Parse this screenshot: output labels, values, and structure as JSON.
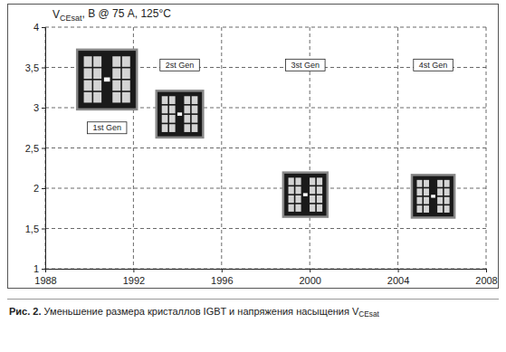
{
  "chart_data": {
    "type": "scatter",
    "title": "Рис. 2. Уменьшение размера кристаллов IGBT и напряжения насыщения VCEsat",
    "ylabel": "VCEsat, В @ 75 A, 125°C",
    "x": [
      1990.8,
      1994.1,
      1999.8,
      2005.6
    ],
    "values": [
      3.35,
      2.92,
      1.92,
      1.9
    ],
    "sizes": [
      1,
      0.61,
      0.55,
      0.51
    ],
    "marker": "chip",
    "color": "#1a1a1a",
    "xlim": [
      1988,
      2008
    ],
    "xticks": [
      1988,
      1992,
      1996,
      2000,
      2004,
      2008
    ],
    "ylim": [
      1,
      4
    ],
    "yticks": [
      1,
      {
        "value": 1.5,
        "label": "1,5"
      },
      2,
      {
        "value": 2.5,
        "label": "2,5"
      },
      3,
      {
        "value": 3.5,
        "label": "3,5"
      },
      4
    ],
    "grid": true,
    "annotations": [
      {
        "text": "1st Gen",
        "x": 1990.8,
        "y": 2.75
      },
      {
        "text": "2st Gen",
        "x": 1994.1,
        "y": 3.53
      },
      {
        "text": "3st Gen",
        "x": 1999.8,
        "y": 3.53
      },
      {
        "text": "4st Gen",
        "x": 2005.6,
        "y": 3.53
      }
    ]
  }
}
